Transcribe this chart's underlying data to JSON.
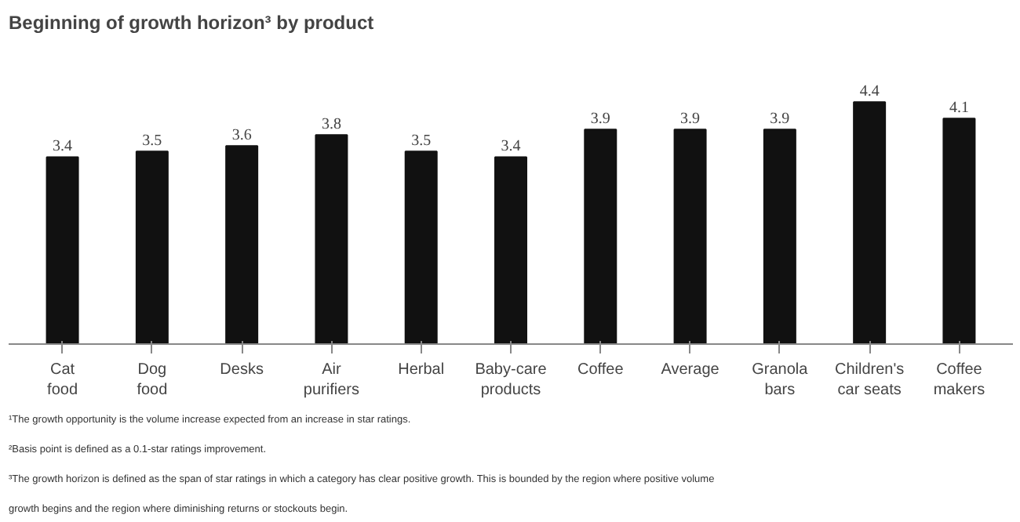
{
  "chart_data": {
    "type": "bar",
    "title": "Beginning of growth horizon³ by product",
    "categories": [
      "Cat food",
      "Dog food",
      "Desks",
      "Air purifiers",
      "Herbal",
      "Baby-care products",
      "Coffee",
      "Average",
      "Granola bars",
      "Children's car seats",
      "Coffee makers"
    ],
    "values": [
      3.4,
      3.5,
      3.6,
      3.8,
      3.5,
      3.4,
      3.9,
      3.9,
      3.9,
      4.4,
      4.1
    ],
    "color": "#111111",
    "data_labels": true,
    "annotations": [
      "¹The growth opportunity is the volume increase expected from an increase in star ratings.",
      "²Basis point is defined as a 0.1-star ratings improvement.",
      "³The growth horizon is defined as the span of star ratings in which a category has clear positive growth. This is bounded by the region where positive volume",
      "growth begins and the region where diminishing returns or stockouts begin."
    ]
  }
}
